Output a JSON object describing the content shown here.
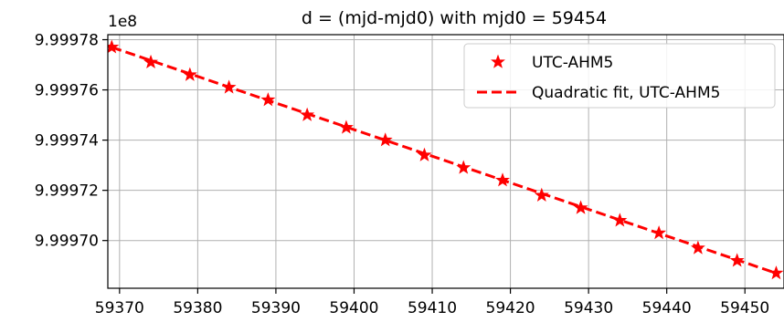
{
  "chart_data": {
    "type": "line",
    "title": "d = (mjd-mjd0) with mjd0 = 59454",
    "xlabel": "",
    "ylabel": "",
    "y_offset_label": "1e8",
    "xlim": [
      59368.5,
      59455
    ],
    "ylim": [
      9.999681,
      9.999782
    ],
    "xticks": [
      59370,
      59380,
      59390,
      59400,
      59410,
      59420,
      59430,
      59440,
      59450
    ],
    "xtick_labels": [
      "59370",
      "59380",
      "59390",
      "59400",
      "59410",
      "59420",
      "59430",
      "59440",
      "59450"
    ],
    "yticks": [
      9.9997,
      9.99972,
      9.99974,
      9.99976,
      9.99978
    ],
    "ytick_labels": [
      "9.99970",
      "9.99972",
      "9.99974",
      "9.99976",
      "9.99978"
    ],
    "grid": true,
    "legend_position": "top-right",
    "series": [
      {
        "name": "UTC-AHM5",
        "style": "star-markers",
        "color": "#ff0000",
        "x": [
          59369,
          59374,
          59379,
          59384,
          59389,
          59394,
          59399,
          59404,
          59409,
          59414,
          59419,
          59424,
          59429,
          59434,
          59439,
          59444,
          59449,
          59454
        ],
        "y": [
          9.999777,
          9.999771,
          9.999766,
          9.999761,
          9.999756,
          9.99975,
          9.999745,
          9.99974,
          9.999734,
          9.999729,
          9.999724,
          9.999718,
          9.999713,
          9.999708,
          9.999703,
          9.999697,
          9.999692,
          9.999687
        ]
      },
      {
        "name": "Quadratic fit, UTC-AHM5",
        "style": "dashed-line",
        "color": "#ff0000",
        "x": [
          59369,
          59454
        ],
        "y": [
          9.999777,
          9.999687
        ]
      }
    ]
  }
}
